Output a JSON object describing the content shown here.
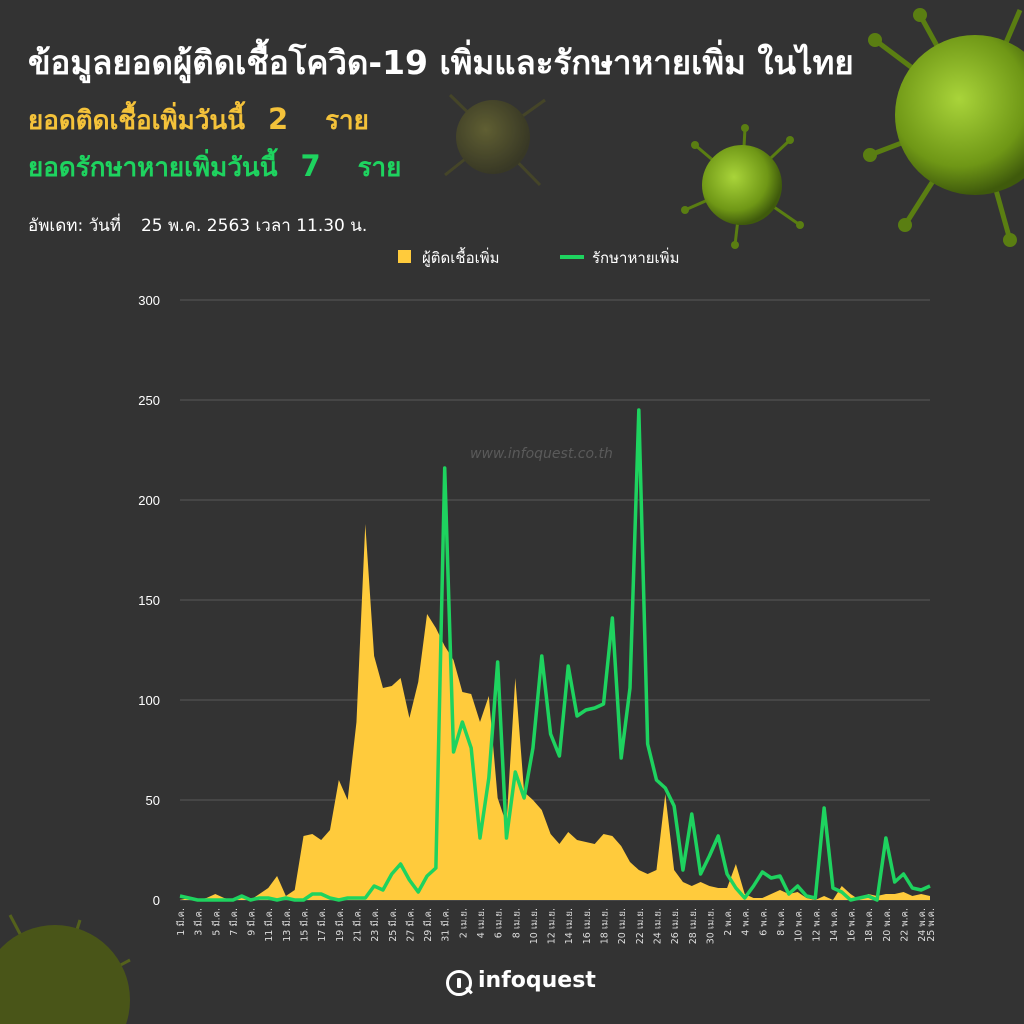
{
  "header": {
    "title": "ข้อมูลยอดผู้ติดเชื้อโควิด-19 เพิ่มและรักษาหายเพิ่ม ในไทย",
    "new_cases_label": "ยอดติดเชื้อเพิ่มวันนี้",
    "new_cases_value": "2",
    "new_cases_unit": "ราย",
    "recovered_label": "ยอดรักษาหายเพิ่มวันนี้",
    "recovered_value": "7",
    "recovered_unit": "ราย",
    "update_prefix": "อัพเดท: วันที่",
    "update_text": "25 พ.ค. 2563 เวลา 11.30 น."
  },
  "footer": {
    "watermark": "www.infoquest.co.th",
    "brand": "infoquest"
  },
  "colors": {
    "background": "#333333",
    "new_cases": "#ffcb3c",
    "recovered": "#1ed35f",
    "virus_green": "#7fa81c"
  },
  "chart_data": {
    "type": "area",
    "title": "",
    "xlabel": "",
    "ylabel": "",
    "ylim": [
      0,
      300
    ],
    "yticks": [
      0,
      50,
      100,
      150,
      200,
      250,
      300
    ],
    "grid": true,
    "legend_position": "top-center",
    "x": [
      "1 มี.ค.",
      "2 มี.ค.",
      "3 มี.ค.",
      "4 มี.ค.",
      "5 มี.ค.",
      "6 มี.ค.",
      "7 มี.ค.",
      "8 มี.ค.",
      "9 มี.ค.",
      "10 มี.ค.",
      "11 มี.ค.",
      "12 มี.ค.",
      "13 มี.ค.",
      "14 มี.ค.",
      "15 มี.ค.",
      "16 มี.ค.",
      "17 มี.ค.",
      "18 มี.ค.",
      "19 มี.ค.",
      "20 มี.ค.",
      "21 มี.ค.",
      "22 มี.ค.",
      "23 มี.ค.",
      "24 มี.ค.",
      "25 มี.ค.",
      "26 มี.ค.",
      "27 มี.ค.",
      "28 มี.ค.",
      "29 มี.ค.",
      "30 มี.ค.",
      "31 มี.ค.",
      "1 เม.ย.",
      "2 เม.ย.",
      "3 เม.ย.",
      "4 เม.ย.",
      "5 เม.ย.",
      "6 เม.ย.",
      "7 เม.ย.",
      "8 เม.ย.",
      "9 เม.ย.",
      "10 เม.ย.",
      "11 เม.ย.",
      "12 เม.ย.",
      "13 เม.ย.",
      "14 เม.ย.",
      "15 เม.ย.",
      "16 เม.ย.",
      "17 เม.ย.",
      "18 เม.ย.",
      "19 เม.ย.",
      "20 เม.ย.",
      "21 เม.ย.",
      "22 เม.ย.",
      "23 เม.ย.",
      "24 เม.ย.",
      "25 เม.ย.",
      "26 เม.ย.",
      "27 เม.ย.",
      "28 เม.ย.",
      "29 เม.ย.",
      "30 เม.ย.",
      "1 พ.ค.",
      "2 พ.ค.",
      "3 พ.ค.",
      "4 พ.ค.",
      "5 พ.ค.",
      "6 พ.ค.",
      "7 พ.ค.",
      "8 พ.ค.",
      "9 พ.ค.",
      "10 พ.ค.",
      "11 พ.ค.",
      "12 พ.ค.",
      "13 พ.ค.",
      "14 พ.ค.",
      "15 พ.ค.",
      "16 พ.ค.",
      "17 พ.ค.",
      "18 พ.ค.",
      "19 พ.ค.",
      "20 พ.ค.",
      "21 พ.ค.",
      "22 พ.ค.",
      "23 พ.ค.",
      "24 พ.ค.",
      "25 พ.ค."
    ],
    "tick_labels": [
      "1 มี.ค.",
      "3 มี.ค.",
      "5 มี.ค.",
      "7 มี.ค.",
      "9 มี.ค.",
      "11 มี.ค.",
      "13 มี.ค.",
      "15 มี.ค.",
      "17 มี.ค.",
      "19 มี.ค.",
      "21 มี.ค.",
      "23 มี.ค.",
      "25 มี.ค.",
      "27 มี.ค.",
      "29 มี.ค.",
      "31 มี.ค.",
      "2 เม.ย.",
      "4 เม.ย.",
      "6 เม.ย.",
      "8 เม.ย.",
      "10 เม.ย.",
      "12 เม.ย.",
      "14 เม.ย.",
      "16 เม.ย.",
      "18 เม.ย.",
      "20 เม.ย.",
      "22 เม.ย.",
      "24 เม.ย.",
      "26 เม.ย.",
      "28 เม.ย.",
      "30 เม.ย.",
      "2 พ.ค.",
      "4 พ.ค.",
      "6 พ.ค.",
      "8 พ.ค.",
      "10 พ.ค.",
      "12 พ.ค.",
      "14 พ.ค.",
      "16 พ.ค.",
      "18 พ.ค.",
      "20 พ.ค.",
      "22 พ.ค.",
      "24 พ.ค.",
      "25 พ.ค."
    ],
    "series": [
      {
        "name": "ผู้ติดเชื้อเพิ่ม",
        "type": "area",
        "color": "#ffcb3c",
        "values": [
          0,
          1,
          0,
          1,
          3,
          1,
          0,
          1,
          0,
          3,
          6,
          12,
          2,
          5,
          32,
          33,
          30,
          35,
          60,
          50,
          89,
          188,
          122,
          106,
          107,
          111,
          91,
          109,
          143,
          136,
          127,
          120,
          104,
          103,
          89,
          102,
          51,
          38,
          111,
          54,
          50,
          45,
          33,
          28,
          34,
          30,
          29,
          28,
          33,
          32,
          27,
          19,
          15,
          13,
          15,
          53,
          15,
          9,
          7,
          9,
          7,
          6,
          6,
          18,
          3,
          1,
          1,
          3,
          5,
          3,
          4,
          1,
          0,
          2,
          0,
          7,
          3,
          0,
          3,
          2,
          3,
          3,
          4,
          2,
          3,
          2
        ]
      },
      {
        "name": "รักษาหายเพิ่ม",
        "type": "line",
        "color": "#1ed35f",
        "values": [
          2,
          1,
          0,
          0,
          0,
          0,
          0,
          2,
          0,
          1,
          1,
          0,
          1,
          0,
          0,
          3,
          3,
          1,
          0,
          1,
          1,
          1,
          7,
          5,
          13,
          18,
          10,
          4,
          12,
          16,
          216,
          74,
          89,
          76,
          31,
          61,
          119,
          31,
          64,
          51,
          76,
          122,
          83,
          72,
          117,
          92,
          95,
          96,
          98,
          141,
          71,
          106,
          245,
          78,
          60,
          56,
          47,
          15,
          43,
          13,
          22,
          32,
          13,
          6,
          1,
          7,
          14,
          11,
          12,
          3,
          7,
          2,
          1,
          46,
          6,
          4,
          0,
          1,
          2,
          0,
          31,
          9,
          13,
          6,
          5,
          7
        ]
      }
    ]
  }
}
